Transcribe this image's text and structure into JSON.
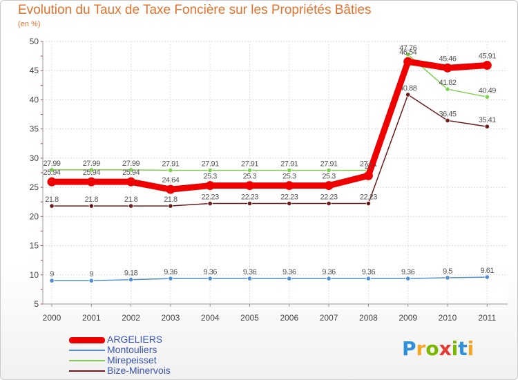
{
  "title": "Evolution du Taux de Taxe Foncière sur les Propriétés Bâties",
  "subtitle": "(en %)",
  "logo": {
    "letters": [
      "P",
      "r",
      "o",
      "x",
      "i",
      "t",
      "i"
    ],
    "colors": [
      "#2f8fd8",
      "#f5a623",
      "#7ab800",
      "#e53935",
      "#7ab800",
      "#2f8fd8",
      "#f5a623"
    ]
  },
  "chart_data": {
    "type": "line",
    "title": "Evolution du Taux de Taxe Foncière sur les Propriétés Bâties",
    "ylabel": "(en %)",
    "xlabel": "",
    "ylim": [
      5,
      50
    ],
    "yticks": [
      5,
      10,
      15,
      20,
      25,
      30,
      35,
      40,
      45,
      50
    ],
    "grid": true,
    "legend_position": "bottom-left",
    "x": [
      "2000",
      "2001",
      "2002",
      "2003",
      "2004",
      "2005",
      "2006",
      "2007",
      "2008",
      "2009",
      "2010",
      "2011"
    ],
    "series": [
      {
        "name": "Montouliers",
        "color": "#4f8fd0",
        "values": [
          9,
          9,
          9.18,
          9.36,
          9.36,
          9.36,
          9.36,
          9.36,
          9.36,
          9.36,
          9.5,
          9.61
        ],
        "labels": [
          "9",
          "9",
          "9.18",
          "9.36",
          "9.36",
          "9.36",
          "9.36",
          "9.36",
          "9.36",
          "9.36",
          "9.5",
          "9.61"
        ]
      },
      {
        "name": "Bize-Minervois",
        "color": "#6b1a1a",
        "values": [
          21.8,
          21.8,
          21.8,
          21.8,
          22.23,
          22.23,
          22.23,
          22.23,
          22.23,
          40.88,
          36.45,
          35.41
        ],
        "labels": [
          "21.8",
          "21.8",
          "21.8",
          "21.8",
          "22.23",
          "22.23",
          "22.23",
          "22.23",
          "22.23",
          "40.88",
          "36.45",
          "35.41"
        ]
      },
      {
        "name": "Mirepeisset",
        "color": "#7ed14e",
        "values": [
          27.99,
          27.99,
          27.99,
          27.91,
          27.91,
          27.91,
          27.91,
          27.91,
          27.91,
          47.76,
          41.82,
          40.49
        ],
        "labels": [
          "27.99",
          "27.99",
          "27.99",
          "27.91",
          "27.91",
          "27.91",
          "27.91",
          "27.91",
          "27.91",
          "47.76",
          "41.82",
          "40.49"
        ]
      },
      {
        "name": "ARGELIERS",
        "color": "#ee0000",
        "emphasis": true,
        "values": [
          25.94,
          25.94,
          25.94,
          24.64,
          25.3,
          25.3,
          25.3,
          25.3,
          27,
          46.54,
          45.46,
          45.91
        ],
        "labels": [
          "25.94",
          "25.94",
          "25.94",
          "24.64",
          "25.3",
          "25.3",
          "25.3",
          "25.3",
          "27",
          "46.54",
          "45.46",
          "45.91"
        ]
      }
    ],
    "legend_order": [
      "ARGELIERS",
      "Montouliers",
      "Mirepeisset",
      "Bize-Minervois"
    ]
  }
}
